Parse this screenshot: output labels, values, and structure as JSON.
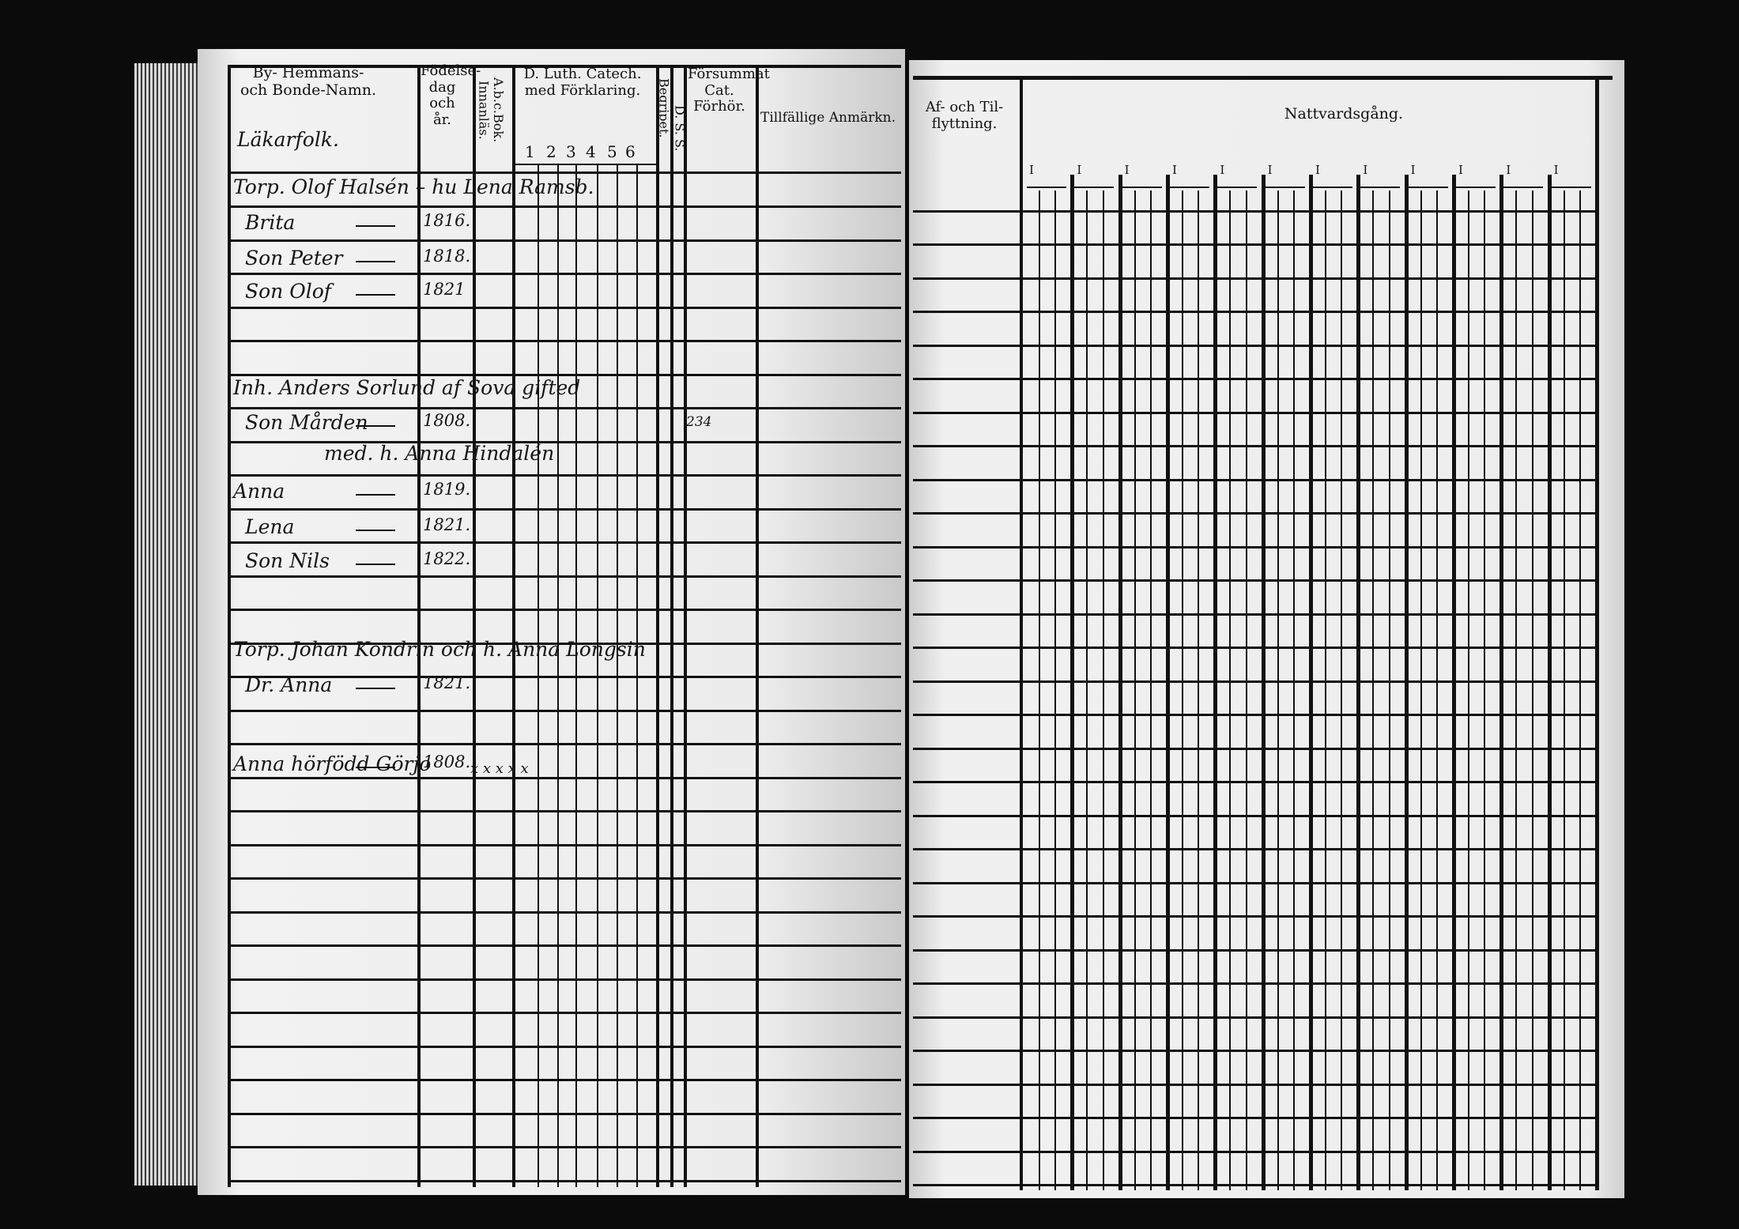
{
  "left_page": {
    "headers": {
      "name": "By- Hemmans- och Bonde-Namn.",
      "birth": "Födelse-dag och år.",
      "abc": "A.b.c.Bok. Innanläs.",
      "catechism": "D. Luth. Catech. med Förklaring.",
      "catechism_cols": [
        "1",
        "2",
        "3",
        "4",
        "5",
        "6"
      ],
      "begripet": "Begripet.",
      "ds": "D. S. S.",
      "forsummat": "Försummat Cat. Förhör.",
      "tillfallige": "Tillfällige Anmärkn."
    },
    "section_label": "Läkarfolk.",
    "entries": [
      {
        "name": "Torp. Olof Halsén – hu Lena Ramsb.",
        "year": ""
      },
      {
        "name": "Brita",
        "year": "1816."
      },
      {
        "name": "Son Peter",
        "year": "1818."
      },
      {
        "name": "Son Olof",
        "year": "1821"
      },
      {
        "name": "Inh. Anders Sorlund af Sova gifted",
        "year": ""
      },
      {
        "name": "Son Mården",
        "year": "1808."
      },
      {
        "name": "med. h. Anna Hindalén",
        "year": ""
      },
      {
        "name": "Anna",
        "year": "1819."
      },
      {
        "name": "Lena",
        "year": "1821."
      },
      {
        "name": "Son Nils",
        "year": "1822."
      },
      {
        "name": "Torp. Johan Kondrin och h. Anna Longsin",
        "year": ""
      },
      {
        "name": "Dr. Anna",
        "year": "1821."
      },
      {
        "name": "Anna hörfödd Görjo",
        "year": "1808."
      }
    ],
    "margin_note": "234",
    "row_marks": "x x x x x"
  },
  "right_page": {
    "headers": {
      "moving": "Af- och Til-flyttning.",
      "communion": "Nattvardsgång."
    },
    "communion_mark": "I"
  }
}
